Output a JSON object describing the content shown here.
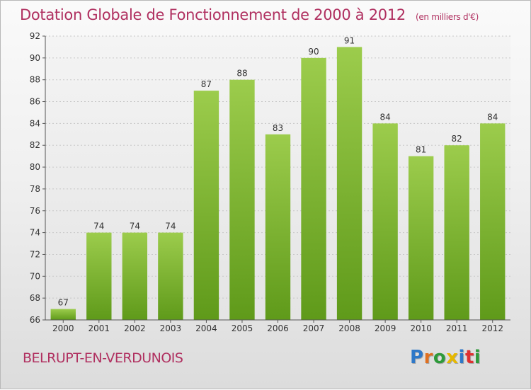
{
  "header": {
    "title": "Dotation Globale de Fonctionnement de 2000 à 2012",
    "subtitle": "(en milliers d'€)"
  },
  "footer": {
    "commune": "BELRUPT-EN-VERDUNOIS",
    "brand": "Proxiti"
  },
  "colors": {
    "title": "#b03060",
    "bar_top": "#9ccc4c",
    "bar_bottom": "#5f9a1a",
    "brand_letters": [
      "#2e78c8",
      "#e07020",
      "#2e9a3a",
      "#e6b800",
      "#2e78c8",
      "#e03030",
      "#2e9a3a"
    ]
  },
  "chart_data": {
    "type": "bar",
    "categories": [
      "2000",
      "2001",
      "2002",
      "2003",
      "2004",
      "2005",
      "2006",
      "2007",
      "2008",
      "2009",
      "2010",
      "2011",
      "2012"
    ],
    "values": [
      67,
      74,
      74,
      74,
      87,
      88,
      83,
      90,
      91,
      84,
      81,
      82,
      84
    ],
    "title": "Dotation Globale de Fonctionnement de 2000 à 2012",
    "subtitle": "(en milliers d'€)",
    "ylim": [
      66,
      92
    ],
    "yticks": [
      66,
      68,
      70,
      72,
      74,
      76,
      78,
      80,
      82,
      84,
      86,
      88,
      90,
      92
    ],
    "grid": "horizontal-dashed",
    "legend": "none"
  }
}
